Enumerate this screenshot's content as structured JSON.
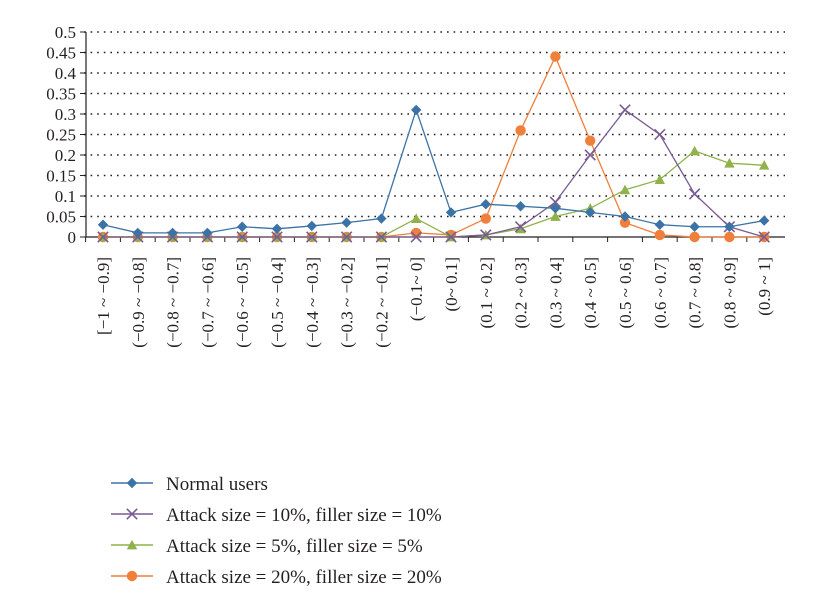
{
  "chart_data": {
    "type": "line",
    "categories": [
      "[−1 ~ −0.9]",
      "(−0.9 ~ −0.8]",
      "(−0.8 ~ −0.7]",
      "(−0.7 ~ −0.6]",
      "(−0.6 ~ −0.5]",
      "(−0.5 ~ −0.4]",
      "(−0.4 ~ −0.3]",
      "(−0.3 ~ −0.2]",
      "(−0.2 ~ −0.1]",
      "(−0.1~ 0]",
      "(0~ 0.1]",
      "(0.1 ~ 0.2]",
      "(0.2 ~ 0.3]",
      "(0.3 ~ 0.4]",
      "(0.4 ~ 0.5]",
      "(0.5 ~ 0.6]",
      "(0.6 ~ 0.7]",
      "(0.7 ~ 0.8]",
      "(0.8 ~ 0.9]",
      "(0.9 ~ 1]"
    ],
    "y_ticks": [
      "0",
      "0.05",
      "0.1",
      "0.15",
      "0.2",
      "0.25",
      "0.3",
      "0.35",
      "0.4",
      "0.45",
      "0.5"
    ],
    "ylim": [
      0,
      0.5
    ],
    "grid": "horizontal dotted",
    "legend_position": "bottom",
    "series": [
      {
        "name": "Normal users",
        "color": "#3b73a6",
        "marker": "diamond",
        "values": [
          0.03,
          0.01,
          0.01,
          0.01,
          0.025,
          0.02,
          0.027,
          0.035,
          0.045,
          0.31,
          0.06,
          0.08,
          0.075,
          0.07,
          0.06,
          0.05,
          0.03,
          0.025,
          0.025,
          0.04
        ]
      },
      {
        "name": "Attack size = 10%, filler size = 10%",
        "color": "#7a5c94",
        "marker": "x",
        "values": [
          0,
          0,
          0,
          0,
          0,
          0,
          0,
          0,
          0,
          0,
          0,
          0.005,
          0.025,
          0.085,
          0.2,
          0.31,
          0.25,
          0.105,
          0.025,
          0
        ]
      },
      {
        "name": "Attack size = 5%, filler size = 5%",
        "color": "#8fb24a",
        "marker": "triangle",
        "values": [
          0,
          0,
          0,
          0,
          0,
          0,
          0,
          0,
          0,
          0.045,
          0,
          0.005,
          0.02,
          0.05,
          0.07,
          0.115,
          0.14,
          0.21,
          0.18,
          0.175
        ]
      },
      {
        "name": "Attack size = 20%, filler size = 20%",
        "color": "#f07f3c",
        "marker": "circle",
        "values": [
          0,
          0,
          0,
          0,
          0,
          0,
          0,
          0,
          0,
          0.01,
          0.005,
          0.045,
          0.26,
          0.44,
          0.235,
          0.035,
          0.005,
          0,
          0,
          0
        ]
      }
    ]
  }
}
